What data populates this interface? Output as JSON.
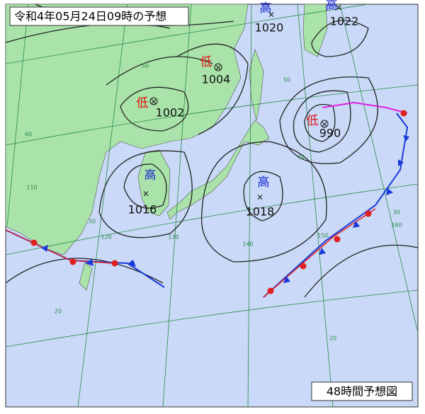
{
  "header": {
    "title": "令和4年05月24日09時の予想"
  },
  "footer": {
    "label": "48時間予想図"
  },
  "systems": [
    {
      "symbol": "高",
      "pressure": 1020
    },
    {
      "symbol": "高",
      "pressure": 1022
    },
    {
      "symbol": "低",
      "pressure": 1004
    },
    {
      "symbol": "低",
      "pressure": 1002
    },
    {
      "symbol": "低",
      "pressure": 990
    },
    {
      "symbol": "高",
      "pressure": 1016
    },
    {
      "symbol": "高",
      "pressure": 1018
    }
  ],
  "grid_labels": [
    50,
    50,
    40,
    40,
    30,
    30,
    20,
    20,
    110,
    120,
    130,
    140,
    150,
    160
  ]
}
